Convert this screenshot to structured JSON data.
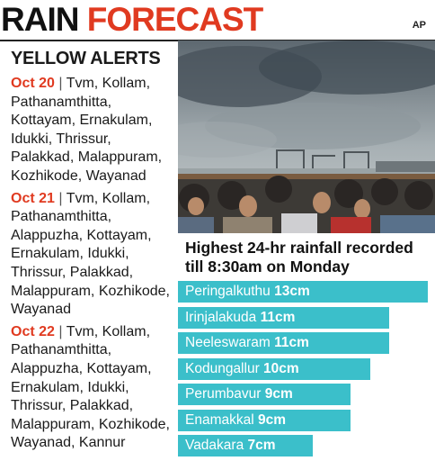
{
  "header": {
    "title_word1": "RAIN",
    "title_word2": "FORECAST",
    "photo_credit": "AP"
  },
  "alerts": {
    "heading": "YELLOW ALERTS",
    "separator": "|",
    "entries": [
      {
        "date": "Oct 20",
        "districts": "Tvm, Kollam, Pathanamthitta, Kottayam, Ernakulam, Idukki, Thrissur, Palakkad, Malappuram, Kozhikode, Wayanad"
      },
      {
        "date": "Oct 21",
        "districts": "Tvm, Kollam, Pathanamthitta, Alappuzha, Kottayam, Ernakulam, Idukki, Thrissur, Palakkad, Malappuram, Kozhikode, Wayanad"
      },
      {
        "date": "Oct 22",
        "districts": "Tvm, Kollam, Pathanamthitta, Alappuzha, Kottayam, Ernakulam, Idukki, Thrissur, Palakkad, Malappuram, Kozhikode, Wayanad, Kannur"
      }
    ]
  },
  "colors": {
    "accent": "#e03a20",
    "bar": "#3bbfca"
  },
  "chart_data": {
    "type": "bar",
    "orientation": "horizontal",
    "title": "Highest 24-hr rainfall recorded till 8:30am on Monday",
    "unit": "cm",
    "categories": [
      "Peringalkuthu",
      "Irinjalakuda",
      "Neeleswaram",
      "Kodungallur",
      "Perumbavur",
      "Enamakkal",
      "Vadakara"
    ],
    "values": [
      13,
      11,
      11,
      10,
      9,
      9,
      7
    ],
    "value_labels": [
      "13cm",
      "11cm",
      "11cm",
      "10cm",
      "9cm",
      "9cm",
      "7cm"
    ]
  }
}
